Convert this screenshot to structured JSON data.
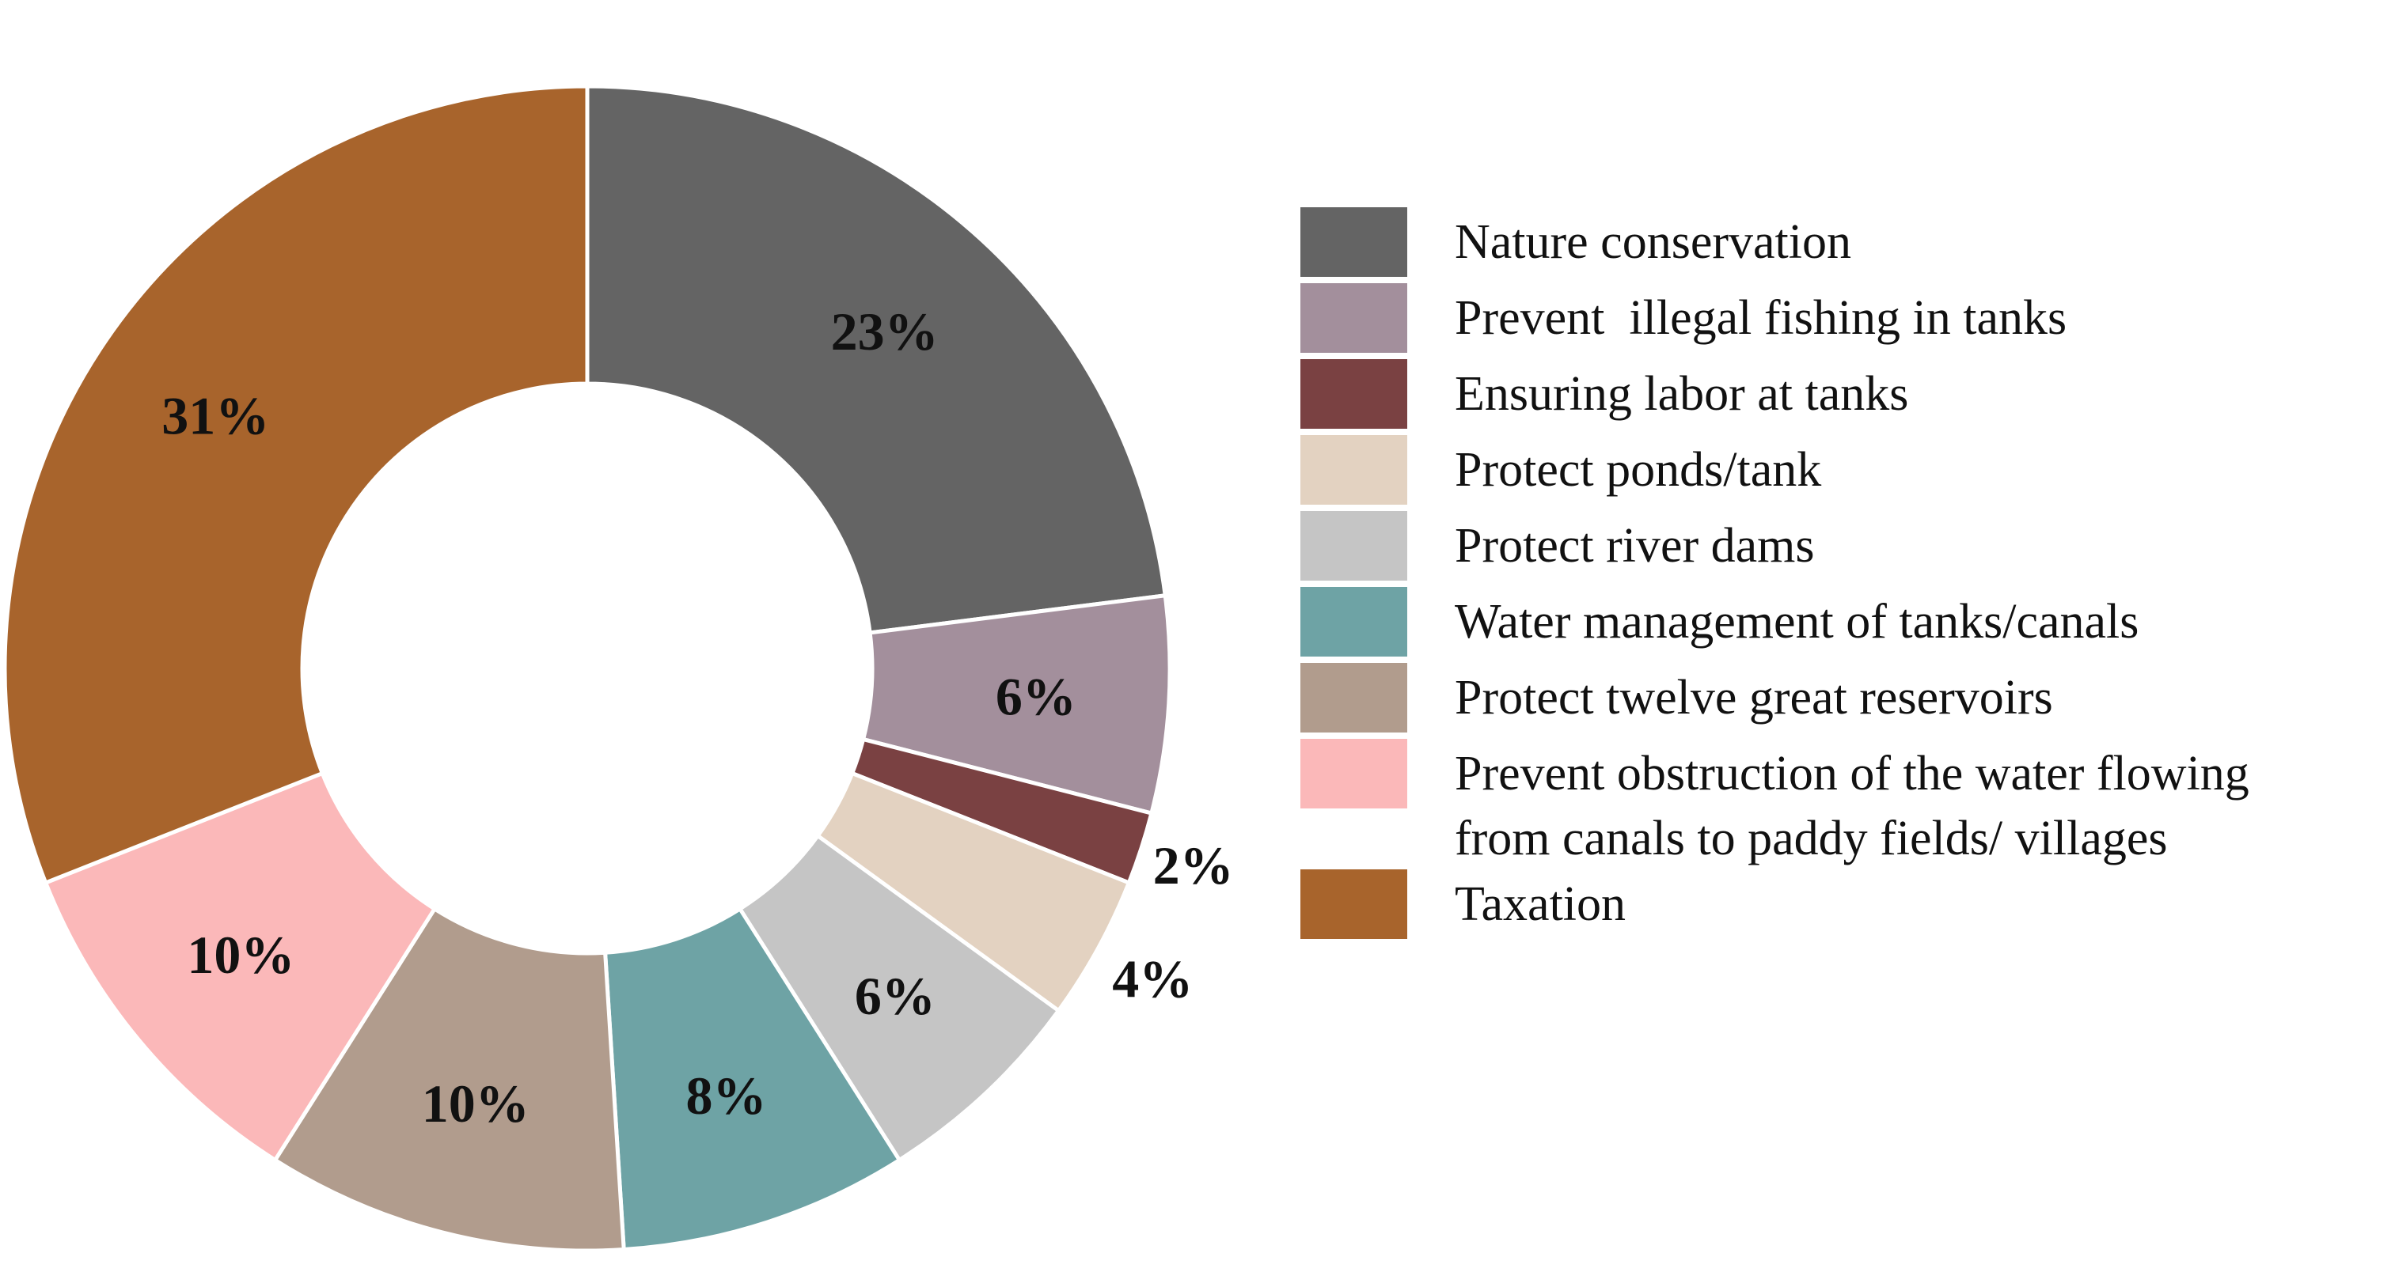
{
  "chart_data": {
    "type": "donut",
    "title": "",
    "unit": "%",
    "categories": [
      "Nature conservation",
      "Prevent  illegal fishing in tanks",
      "Ensuring labor at tanks",
      "Protect ponds/tank",
      "Protect river dams",
      "Water management of tanks/canals",
      "Protect twelve great reservoirs",
      "Prevent obstruction of the water flowing from canals to paddy fields/ villages",
      "Taxation"
    ],
    "values": [
      23,
      6,
      2,
      4,
      6,
      8,
      10,
      10,
      31
    ],
    "slices": [
      {
        "name": "Nature conservation",
        "legend_lines": [
          "Nature conservation"
        ],
        "value": 23,
        "label": "23%",
        "color": "#646464"
      },
      {
        "name": "Prevent  illegal fishing in tanks",
        "legend_lines": [
          "Prevent  illegal fishing in tanks"
        ],
        "value": 6,
        "label": "6%",
        "color": "#a38f9c"
      },
      {
        "name": "Ensuring labor at tanks",
        "legend_lines": [
          "Ensuring labor at tanks"
        ],
        "value": 2,
        "label": "2%",
        "color": "#7a4142"
      },
      {
        "name": "Protect ponds/tank",
        "legend_lines": [
          "Protect ponds/tank"
        ],
        "value": 4,
        "label": "4%",
        "color": "#e3d2c1"
      },
      {
        "name": "Protect river dams",
        "legend_lines": [
          "Protect river dams"
        ],
        "value": 6,
        "label": "6%",
        "color": "#c5c5c5"
      },
      {
        "name": "Water management of tanks/canals",
        "legend_lines": [
          "Water management of tanks/canals"
        ],
        "value": 8,
        "label": "8%",
        "color": "#6ea3a5"
      },
      {
        "name": "Protect twelve great reservoirs",
        "legend_lines": [
          "Protect twelve great reservoirs"
        ],
        "value": 10,
        "label": "10%",
        "color": "#b19c8d"
      },
      {
        "name": "Prevent obstruction of the water flowing from canals to paddy fields/ villages",
        "legend_lines": [
          "Prevent obstruction of the water flowing",
          "from canals to paddy fields/ villages"
        ],
        "value": 10,
        "label": "10%",
        "color": "#fbb8b9"
      },
      {
        "name": "Taxation",
        "legend_lines": [
          "Taxation"
        ],
        "value": 31,
        "label": "31%",
        "color": "#a8642c"
      }
    ],
    "legend_position": "right"
  }
}
